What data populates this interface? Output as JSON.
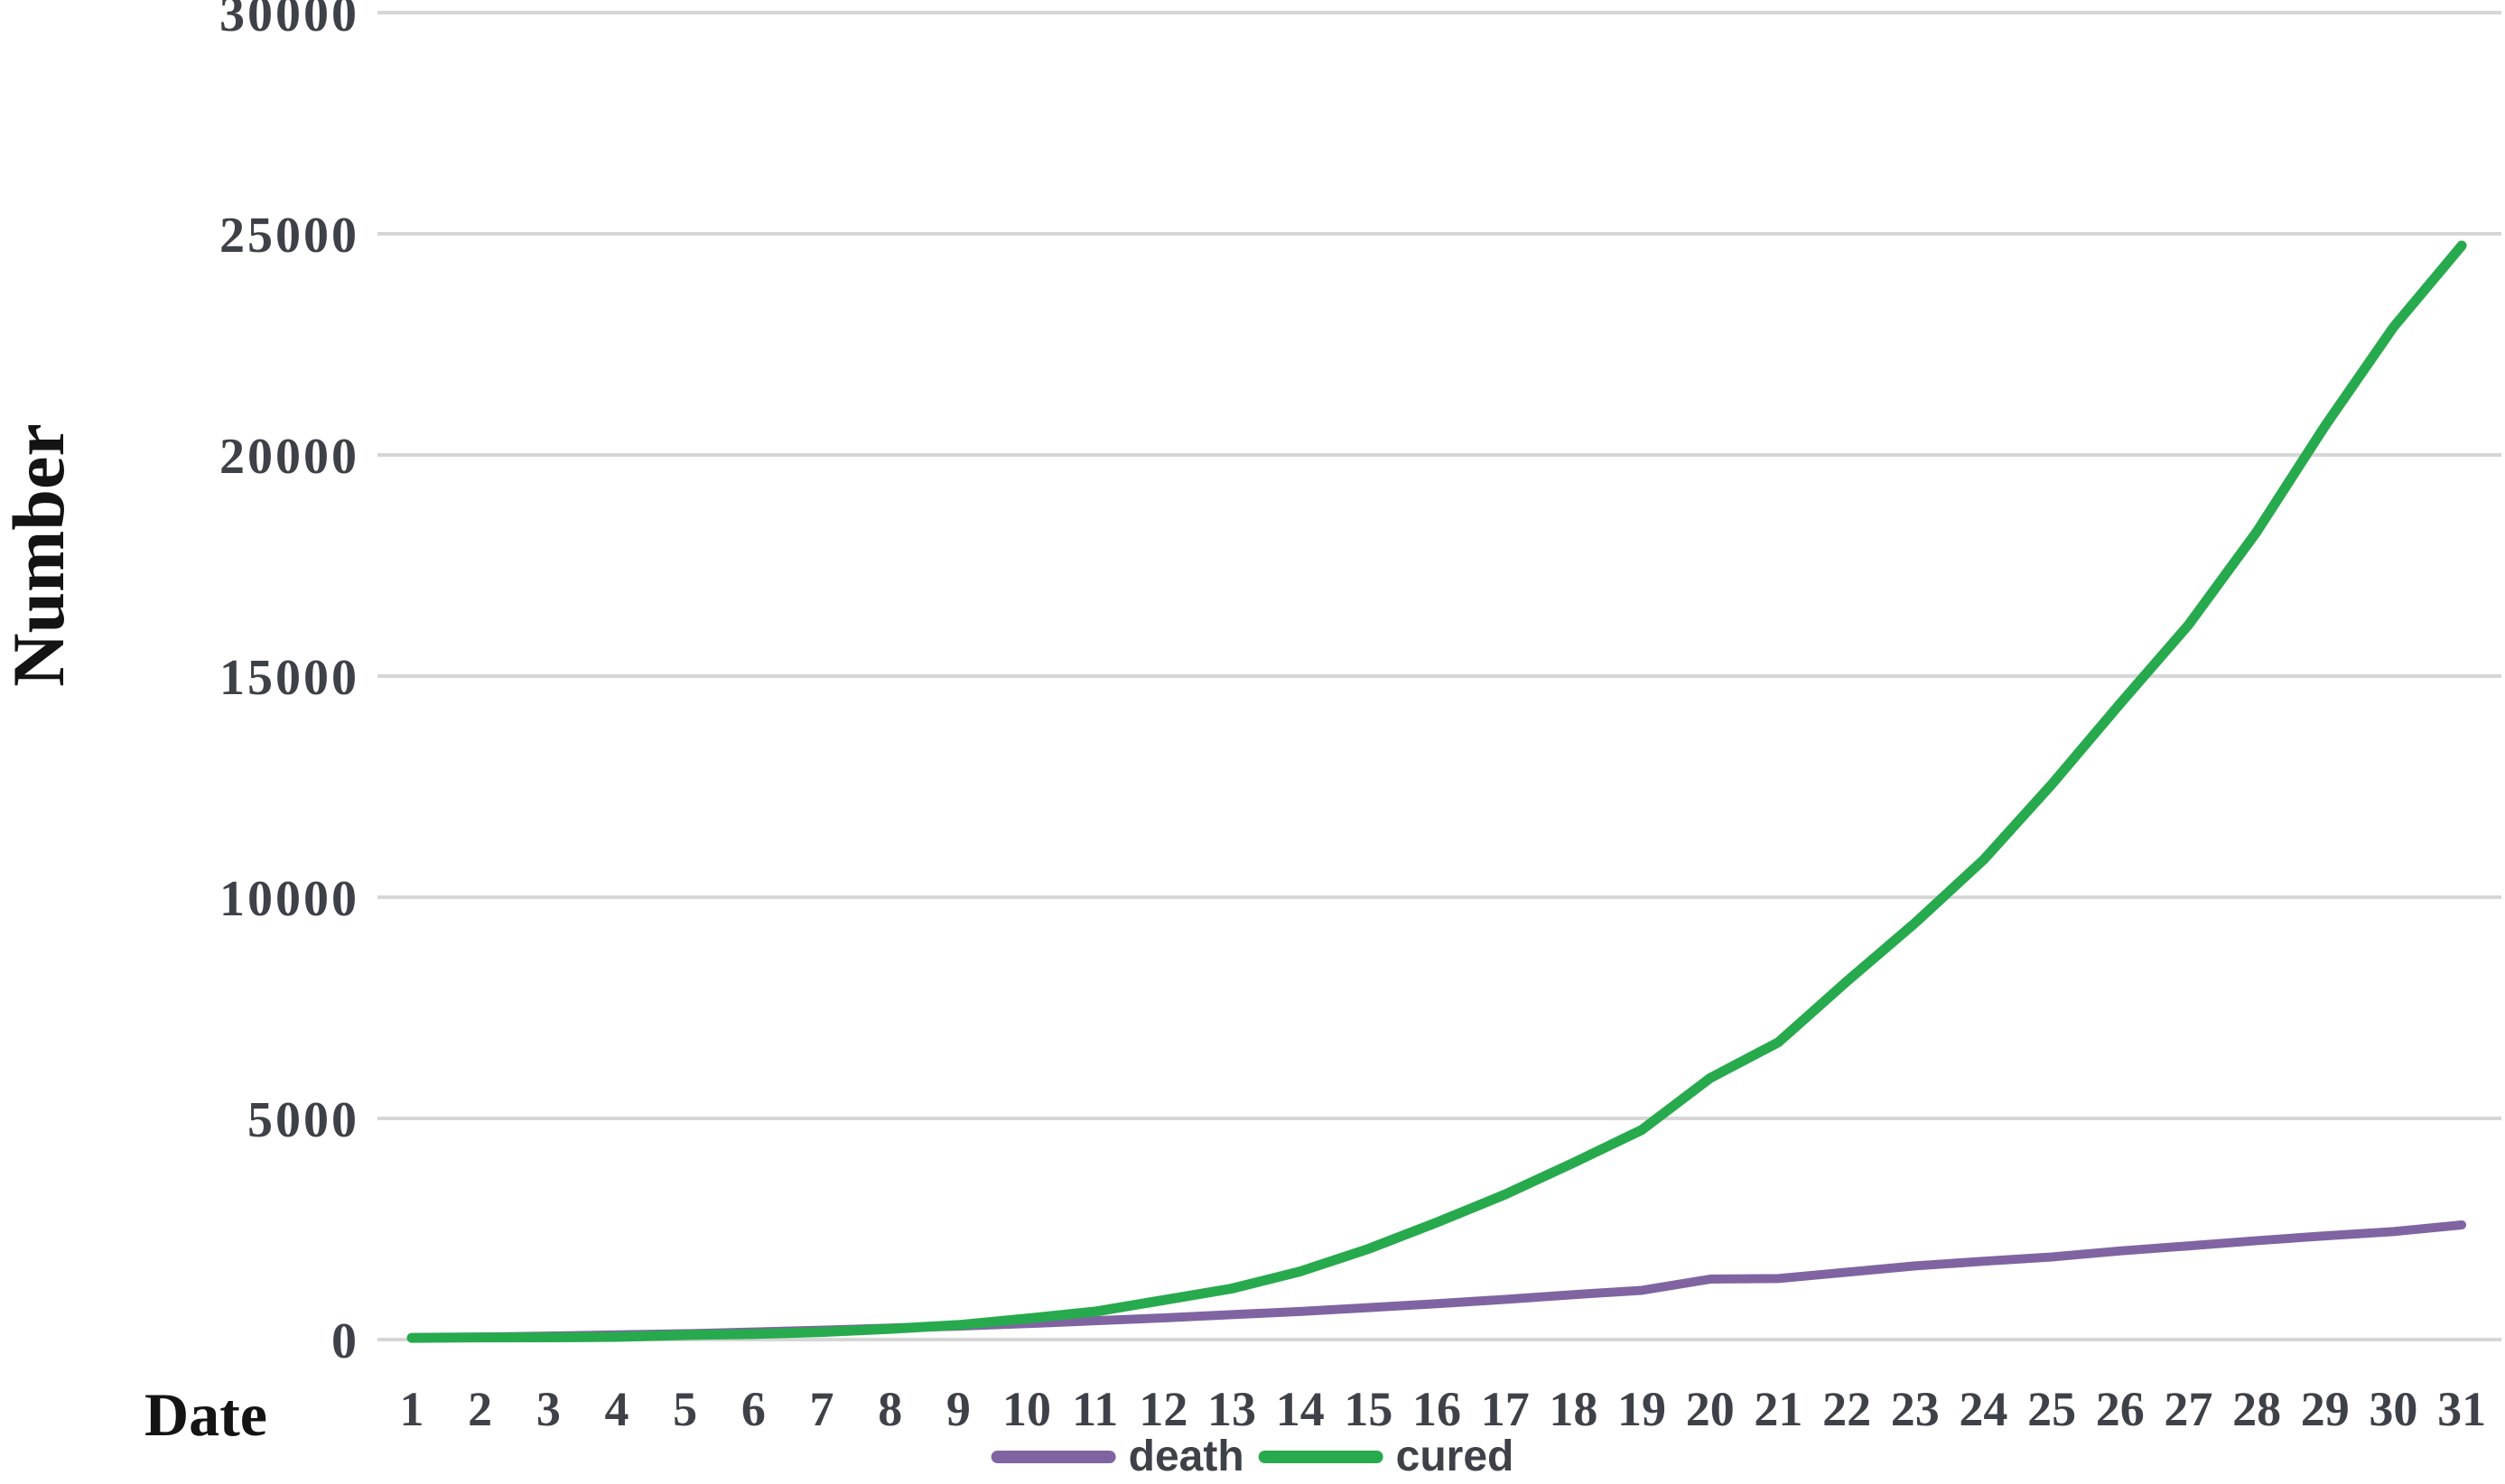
{
  "chart_data": {
    "type": "line",
    "title": "",
    "xlabel": "Date",
    "ylabel": "Number",
    "x": [
      1,
      2,
      3,
      4,
      5,
      6,
      7,
      8,
      9,
      10,
      11,
      12,
      13,
      14,
      15,
      16,
      17,
      18,
      19,
      20,
      21,
      22,
      23,
      24,
      25,
      26,
      27,
      28,
      29,
      30,
      31
    ],
    "series": [
      {
        "name": "death",
        "color": "#8064a2",
        "line_width": 10,
        "values": [
          41,
          56,
          80,
          106,
          132,
          170,
          213,
          259,
          304,
          361,
          425,
          490,
          563,
          636,
          722,
          811,
          908,
          1016,
          1113,
          1367,
          1380,
          1523,
          1665,
          1770,
          1868,
          2004,
          2118,
          2236,
          2345,
          2442,
          2592
        ]
      },
      {
        "name": "cured",
        "color": "#27aa4d",
        "line_width": 11,
        "values": [
          38,
          49,
          51,
          60,
          103,
          124,
          171,
          243,
          328,
          475,
          632,
          892,
          1153,
          1540,
          2050,
          2649,
          3281,
          3996,
          4740,
          5911,
          6723,
          8096,
          9419,
          10844,
          12552,
          14376,
          16155,
          18264,
          20659,
          22888,
          24734
        ]
      }
    ],
    "ylim": [
      0,
      30000
    ],
    "yticks": [
      0,
      5000,
      10000,
      15000,
      20000,
      25000,
      30000
    ],
    "grid": "horizontal",
    "gridline_color": "#d6d6d6",
    "tick_label_color": "#3f4149",
    "axis_title_color": "#141414",
    "legend_position": "bottom-center",
    "legend": [
      {
        "label": "death",
        "color": "#8064a2"
      },
      {
        "label": "cured",
        "color": "#27aa4d"
      }
    ]
  }
}
